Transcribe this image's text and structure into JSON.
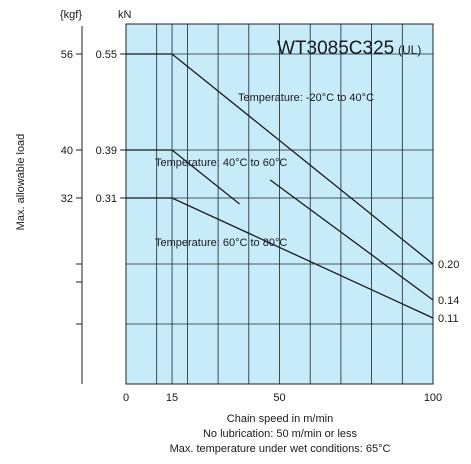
{
  "chart_data": {
    "type": "line",
    "title": "WT3085C325",
    "title_suffix": "(UL)",
    "unit_kgf": "{kgf}",
    "unit_kn": "kN",
    "ylabel": "Max. allowable load",
    "xlabel_lines": [
      "Chain speed in m/min",
      "No lubrication: 50 m/min or less",
      "Max. temperature under wet conditions: 65°C"
    ],
    "x_ticks": [
      0,
      15,
      50,
      100
    ],
    "xlim": [
      0,
      100
    ],
    "ylim": [
      0,
      0.6
    ],
    "y_grid_kn": [
      0.1,
      0.2,
      0.31,
      0.39,
      0.55
    ],
    "y_ticks_kn": [
      {
        "value": 0.55,
        "label": "0.55",
        "kgf": "56"
      },
      {
        "value": 0.39,
        "label": "0.39",
        "kgf": "40"
      },
      {
        "value": 0.31,
        "label": "0.31",
        "kgf": "32"
      }
    ],
    "x_grid_minor": [
      10,
      20,
      30,
      40,
      50,
      60,
      70,
      80,
      90
    ],
    "grid": true,
    "background": "#c6ecfa",
    "series": [
      {
        "name": "Temperature: -20°C to 40°C",
        "x": [
          0,
          15,
          100
        ],
        "y": [
          0.55,
          0.55,
          0.2
        ],
        "end_label": "0.20"
      },
      {
        "name": "Temperature: 40°C to 60°C",
        "x": [
          0,
          15,
          37
        ],
        "y": [
          0.39,
          0.39,
          0.3
        ],
        "x2": [
          47,
          100
        ],
        "y2": [
          0.34,
          0.14
        ],
        "end_label": "0.14"
      },
      {
        "name": "Temperature: 60°C to 80°C",
        "x": [
          0,
          15,
          100
        ],
        "y": [
          0.31,
          0.31,
          0.11
        ],
        "end_label": "0.11"
      }
    ],
    "series_label_positions": [
      "top-right",
      "middle-left",
      "lower-left"
    ]
  }
}
